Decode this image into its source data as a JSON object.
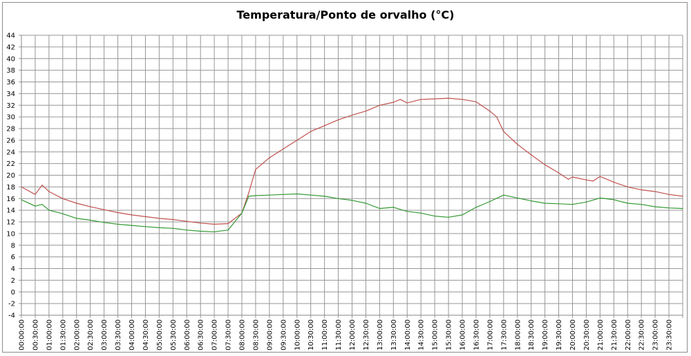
{
  "chart_data": {
    "type": "line",
    "title": "Temperatura/Ponto de orvalho (°C)",
    "xlabel": "",
    "ylabel": "",
    "ylim": [
      -4,
      44
    ],
    "ytick_step": 2,
    "xlim_hours": [
      0,
      24
    ],
    "x_tick_labels": [
      "00:00:00",
      "00:30:00",
      "01:00:00",
      "01:30:00",
      "02:00:00",
      "02:30:00",
      "03:00:00",
      "03:30:00",
      "04:00:00",
      "04:30:00",
      "05:00:00",
      "05:30:00",
      "06:00:00",
      "06:30:00",
      "07:00:00",
      "07:30:00",
      "08:00:00",
      "08:30:00",
      "09:00:00",
      "09:30:00",
      "10:00:00",
      "10:30:00",
      "11:00:00",
      "11:30:00",
      "12:00:00",
      "12:30:00",
      "13:00:00",
      "13:30:00",
      "14:00:00",
      "14:30:00",
      "15:00:00",
      "15:30:00",
      "16:00:00",
      "16:30:00",
      "17:00:00",
      "17:30:00",
      "18:00:00",
      "18:30:00",
      "19:00:00",
      "19:30:00",
      "20:00:00",
      "20:30:00",
      "21:00:00",
      "21:30:00",
      "22:00:00",
      "22:30:00",
      "23:00:00",
      "23:30:00"
    ],
    "grid": true,
    "legend": "none",
    "series": [
      {
        "name": "Temperatura",
        "color": "#c0504d",
        "points": [
          [
            0,
            18.0
          ],
          [
            0.5,
            16.7
          ],
          [
            0.75,
            18.3
          ],
          [
            1,
            17.2
          ],
          [
            1.5,
            16.0
          ],
          [
            2,
            15.2
          ],
          [
            2.5,
            14.6
          ],
          [
            3,
            14.1
          ],
          [
            3.5,
            13.6
          ],
          [
            4,
            13.2
          ],
          [
            4.5,
            12.9
          ],
          [
            5,
            12.6
          ],
          [
            5.5,
            12.4
          ],
          [
            6,
            12.1
          ],
          [
            6.5,
            11.8
          ],
          [
            7,
            11.6
          ],
          [
            7.5,
            11.7
          ],
          [
            8,
            13.5
          ],
          [
            8.25,
            17.0
          ],
          [
            8.5,
            21.0
          ],
          [
            9,
            23.0
          ],
          [
            9.5,
            24.5
          ],
          [
            10,
            26.0
          ],
          [
            10.5,
            27.5
          ],
          [
            11,
            28.5
          ],
          [
            11.5,
            29.5
          ],
          [
            12,
            30.3
          ],
          [
            12.5,
            31.0
          ],
          [
            13,
            32.0
          ],
          [
            13.5,
            32.5
          ],
          [
            13.75,
            33.0
          ],
          [
            14,
            32.4
          ],
          [
            14.5,
            33.0
          ],
          [
            15,
            33.1
          ],
          [
            15.5,
            33.2
          ],
          [
            16,
            33.0
          ],
          [
            16.5,
            32.6
          ],
          [
            17,
            31.0
          ],
          [
            17.25,
            30.0
          ],
          [
            17.5,
            27.5
          ],
          [
            18,
            25.3
          ],
          [
            18.5,
            23.5
          ],
          [
            19,
            21.8
          ],
          [
            19.5,
            20.4
          ],
          [
            19.85,
            19.3
          ],
          [
            20,
            19.7
          ],
          [
            20.5,
            19.2
          ],
          [
            20.75,
            19.0
          ],
          [
            21,
            19.8
          ],
          [
            21.5,
            18.8
          ],
          [
            22,
            18.0
          ],
          [
            22.5,
            17.5
          ],
          [
            23,
            17.2
          ],
          [
            23.5,
            16.7
          ],
          [
            24,
            16.4
          ]
        ]
      },
      {
        "name": "Ponto de orvalho",
        "color": "#339933",
        "points": [
          [
            0,
            15.8
          ],
          [
            0.5,
            14.7
          ],
          [
            0.75,
            15.0
          ],
          [
            1,
            14.0
          ],
          [
            1.5,
            13.4
          ],
          [
            2,
            12.6
          ],
          [
            2.5,
            12.3
          ],
          [
            3,
            11.9
          ],
          [
            3.5,
            11.6
          ],
          [
            4,
            11.4
          ],
          [
            4.5,
            11.2
          ],
          [
            5,
            11.0
          ],
          [
            5.5,
            10.9
          ],
          [
            6,
            10.6
          ],
          [
            6.5,
            10.4
          ],
          [
            7,
            10.3
          ],
          [
            7.5,
            10.6
          ],
          [
            8,
            13.5
          ],
          [
            8.25,
            16.4
          ],
          [
            8.5,
            16.5
          ],
          [
            9,
            16.6
          ],
          [
            9.5,
            16.7
          ],
          [
            10,
            16.8
          ],
          [
            10.5,
            16.6
          ],
          [
            11,
            16.4
          ],
          [
            11.5,
            16.0
          ],
          [
            12,
            15.7
          ],
          [
            12.5,
            15.2
          ],
          [
            13,
            14.3
          ],
          [
            13.5,
            14.5
          ],
          [
            14,
            13.8
          ],
          [
            14.5,
            13.5
          ],
          [
            15,
            13.0
          ],
          [
            15.5,
            12.8
          ],
          [
            16,
            13.2
          ],
          [
            16.5,
            14.5
          ],
          [
            17,
            15.5
          ],
          [
            17.5,
            16.6
          ],
          [
            18,
            16.1
          ],
          [
            18.5,
            15.6
          ],
          [
            19,
            15.2
          ],
          [
            19.5,
            15.1
          ],
          [
            20,
            15.0
          ],
          [
            20.5,
            15.4
          ],
          [
            21,
            16.1
          ],
          [
            21.5,
            15.8
          ],
          [
            22,
            15.2
          ],
          [
            22.5,
            15.0
          ],
          [
            23,
            14.6
          ],
          [
            23.5,
            14.4
          ],
          [
            24,
            14.3
          ]
        ]
      }
    ]
  }
}
